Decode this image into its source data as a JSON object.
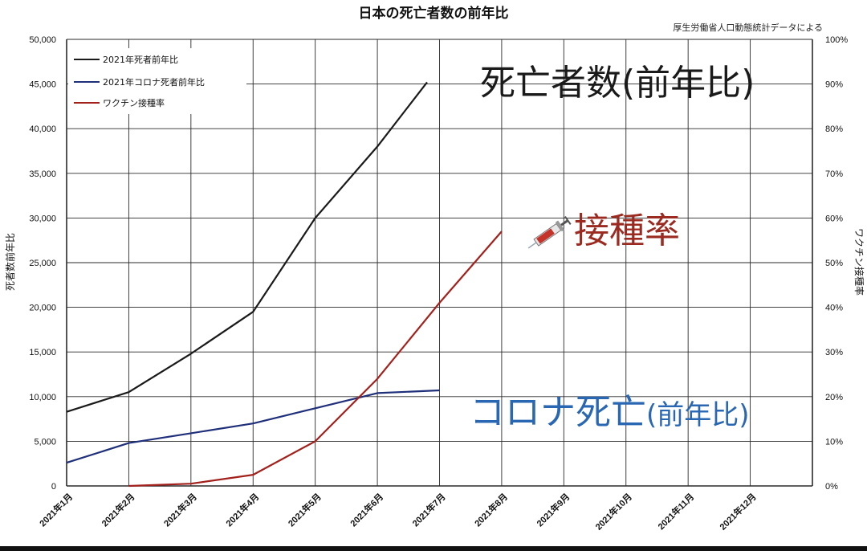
{
  "chart_data": {
    "type": "line",
    "title": "日本の死亡者数の前年比",
    "source_note": "厚生労働省人口動態統計データによる",
    "ylabel_left": "死者数前年比",
    "ylabel_right": "ワクチン接種率",
    "categories": [
      "2021年1月",
      "2021年2月",
      "2021年3月",
      "2021年4月",
      "2021年5月",
      "2021年6月",
      "2021年7月",
      "2021年8月",
      "2021年9月",
      "2021年10月",
      "2021年11月",
      "2021年12月"
    ],
    "y_left": {
      "min": 0,
      "max": 50000,
      "step": 5000,
      "tick_labels": [
        "0",
        "5,000",
        "10,000",
        "15,000",
        "20,000",
        "25,000",
        "30,000",
        "35,000",
        "40,000",
        "45,000",
        "50,000"
      ]
    },
    "y_right": {
      "min": 0,
      "max": 100,
      "step": 10,
      "tick_labels": [
        "0%",
        "10%",
        "20%",
        "30%",
        "40%",
        "50%",
        "60%",
        "70%",
        "80%",
        "90%",
        "100%"
      ]
    },
    "grid": true,
    "legend_position": "top-left",
    "series": [
      {
        "name": "2021年死者前年比",
        "axis": "left",
        "color": "#1a1a1a",
        "x": [
          0,
          1,
          2,
          3,
          4,
          5,
          5.8
        ],
        "y": [
          8300,
          10500,
          14800,
          19500,
          30000,
          38000,
          45200
        ]
      },
      {
        "name": "2021年コロナ死者前年比",
        "axis": "left",
        "color": "#1f2f7a",
        "x": [
          0,
          1,
          2,
          3,
          4,
          5,
          6
        ],
        "y": [
          2600,
          4800,
          5900,
          7000,
          8700,
          10400,
          10700
        ]
      },
      {
        "name": "ワクチン接種率",
        "axis": "right",
        "color": "#a3211c",
        "x": [
          1,
          2,
          3,
          4,
          5,
          6,
          7
        ],
        "y": [
          0,
          0.5,
          2.5,
          10,
          24,
          41,
          57
        ]
      }
    ],
    "annotations": {
      "deaths": "死亡者数(前年比)",
      "vaccination": "接種率",
      "corona_main": "コロナ死亡",
      "corona_paren": "(前年比)"
    }
  },
  "colors": {
    "grid": "#2a2a2a",
    "annotation_deaths": "#1a1a1a",
    "annotation_vaccine": "#9b2a20",
    "annotation_corona": "#2a67b3"
  }
}
